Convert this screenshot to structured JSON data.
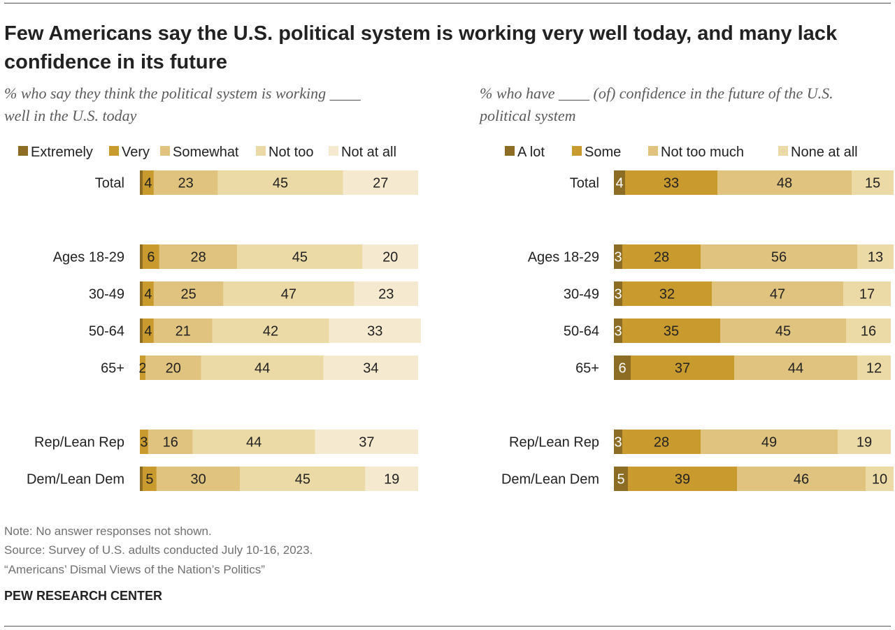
{
  "title": "Few Americans say the U.S. political system is working very well today, and many lack confidence in its future",
  "note": "Note: No answer responses not shown.",
  "source": "Source: Survey of U.S. adults conducted July 10-16, 2023.",
  "report": "“Americans’ Dismal Views of the Nation’s Politics”",
  "org": "PEW RESEARCH CENTER",
  "colors": {
    "darkest": "#8c6d23",
    "dark": "#c99a2e",
    "medium": "#e0c37e",
    "light": "#ecdaa6",
    "lightest": "#f5ead0"
  },
  "chart_data": [
    {
      "type": "bar",
      "orientation": "horizontal-stacked",
      "subtitle": "% who say they think the political system is working ____ well in the U.S. today",
      "legend_position": "top",
      "categories": [
        "Total",
        "Ages 18-29",
        "30-49",
        "50-64",
        "65+",
        "Rep/Lean Rep",
        "Dem/Lean Dem"
      ],
      "series": [
        {
          "name": "Extremely",
          "color": "darkest",
          "values": [
            1,
            1,
            1,
            1,
            0,
            0,
            1
          ]
        },
        {
          "name": "Very",
          "color": "dark",
          "values": [
            4,
            6,
            4,
            4,
            2,
            3,
            5
          ]
        },
        {
          "name": "Somewhat",
          "color": "medium",
          "values": [
            23,
            28,
            25,
            21,
            20,
            16,
            30
          ]
        },
        {
          "name": "Not too",
          "color": "light",
          "values": [
            45,
            45,
            47,
            42,
            44,
            44,
            45
          ]
        },
        {
          "name": "Not at all",
          "color": "lightest",
          "values": [
            27,
            20,
            23,
            33,
            34,
            37,
            19
          ]
        }
      ],
      "labeled_series": [
        1,
        2,
        3,
        4
      ],
      "xlim": [
        0,
        100
      ]
    },
    {
      "type": "bar",
      "orientation": "horizontal-stacked",
      "subtitle": "% who have ____ (of) confidence in the future of the U.S. political system",
      "legend_position": "top",
      "categories": [
        "Total",
        "Ages 18-29",
        "30-49",
        "50-64",
        "65+",
        "Rep/Lean Rep",
        "Dem/Lean Dem"
      ],
      "series": [
        {
          "name": "A lot",
          "color": "darkest",
          "values": [
            4,
            3,
            3,
            3,
            6,
            3,
            5
          ]
        },
        {
          "name": "Some",
          "color": "dark",
          "values": [
            33,
            28,
            32,
            35,
            37,
            28,
            39
          ]
        },
        {
          "name": "Not too much",
          "color": "medium",
          "values": [
            48,
            56,
            47,
            45,
            44,
            49,
            46
          ]
        },
        {
          "name": "None at all",
          "color": "light",
          "values": [
            15,
            13,
            17,
            16,
            12,
            19,
            10
          ]
        }
      ],
      "labeled_series": [
        0,
        1,
        2,
        3
      ],
      "xlim": [
        0,
        100
      ]
    }
  ]
}
